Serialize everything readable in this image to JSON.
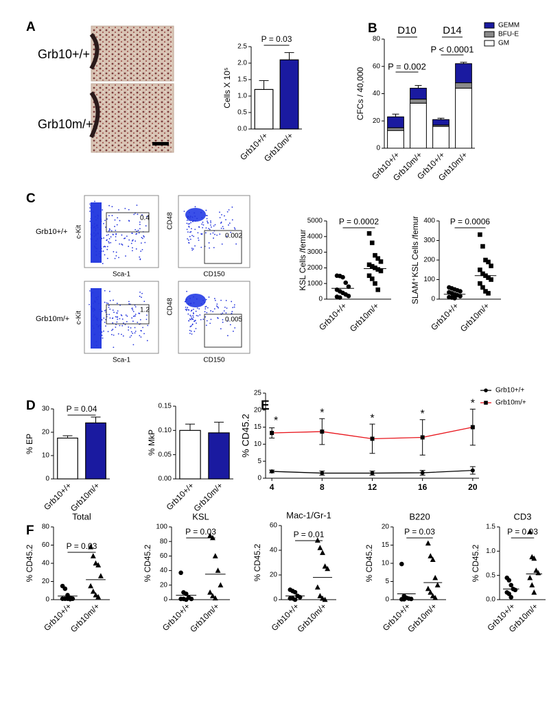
{
  "figure": {
    "panels": [
      "A",
      "B",
      "C",
      "D",
      "E",
      "F"
    ],
    "histology": [
      "Grb10+/+",
      "Grb10m/+"
    ],
    "flow": [
      {
        "genotype": "Grb10+/+",
        "kit_gate": "0.4",
        "slam_gate": "0.002"
      },
      {
        "genotype": "Grb10m/+",
        "kit_gate": "1.2",
        "slam_gate": "0.005"
      }
    ],
    "flow_axes": {
      "kit_y": "c-Kit",
      "kit_x": "Sca-1",
      "slam_y": "CD48",
      "slam_x": "CD150"
    }
  },
  "chart_data": [
    {
      "type": "bar",
      "ylabel": "Cells X 10⁵",
      "categories": [
        "Grb10+/+",
        "Grb10m/+"
      ],
      "values": [
        1.2,
        2.1
      ],
      "errors": [
        0.27,
        0.22
      ],
      "colors": [
        "#ffffff",
        "#1a1aa0"
      ],
      "ylim": [
        0,
        2.5
      ],
      "yticks": [
        {
          "value": 0,
          "label": "0.0"
        },
        0.5,
        {
          "value": 1,
          "label": "1.0"
        },
        1.5,
        {
          "value": 2,
          "label": "2.0"
        },
        2.5
      ],
      "annotation": "P = 0.03"
    },
    {
      "type": "bar",
      "ylabel": "CFCs / 40,000",
      "categories": [
        "Grb10+/+",
        "Grb10m/+",
        "Grb10+/+",
        "Grb10m/+"
      ],
      "series": [
        {
          "name": "GM",
          "color": "#ffffff",
          "values": [
            13,
            33,
            16,
            44
          ]
        },
        {
          "name": "BFU-E",
          "color": "#8a8a8a",
          "values": [
            2,
            3,
            1,
            4
          ]
        },
        {
          "name": "GEMM",
          "color": "#1a1aa0",
          "values": [
            8,
            8,
            4,
            14
          ],
          "errors": [
            2,
            2,
            1,
            1
          ]
        }
      ],
      "ylim": [
        0,
        80
      ],
      "yticks": [
        0,
        20,
        40,
        60,
        80
      ],
      "annotations": [
        "D10",
        "D14",
        "P = 0.002",
        "P < 0.0001"
      ]
    },
    {
      "type": "strip",
      "ylabel": "KSL Cells /femur",
      "categories": [
        "Grb10+/+",
        "Grb10m/+"
      ],
      "markers": [
        "circle",
        "square"
      ],
      "values": [
        [
          1500,
          1480,
          1400,
          1050,
          800,
          600,
          500,
          400,
          300,
          200,
          150,
          100
        ],
        [
          4200,
          3600,
          2800,
          2600,
          2400,
          2200,
          2100,
          2000,
          1900,
          1800,
          1500,
          1300,
          1000,
          600
        ]
      ],
      "means": [
        690,
        1950
      ],
      "ylim": [
        0,
        5000
      ],
      "yticks": [
        0,
        1000,
        2000,
        3000,
        4000,
        5000
      ],
      "annotation": "P = 0.0002"
    },
    {
      "type": "strip",
      "ylabel": "SLAM⁺KSL Cells /femur",
      "categories": [
        "Grb10+/+",
        "Grb10m/+"
      ],
      "markers": [
        "circle",
        "square"
      ],
      "values": [
        [
          60,
          55,
          50,
          45,
          40,
          35,
          30,
          25,
          20,
          15,
          10,
          8,
          5
        ],
        [
          330,
          270,
          200,
          190,
          170,
          150,
          130,
          120,
          110,
          100,
          80,
          60,
          40,
          30
        ]
      ],
      "means": [
        25,
        120
      ],
      "ylim": [
        0,
        400
      ],
      "yticks": [
        0,
        100,
        200,
        300,
        400
      ],
      "annotation": "P = 0.0006"
    },
    {
      "type": "bar",
      "ylabel": "% EP",
      "categories": [
        "Grb10+/+",
        "Grb10m/+"
      ],
      "values": [
        17.5,
        24
      ],
      "errors": [
        1,
        2.5
      ],
      "colors": [
        "#ffffff",
        "#1a1aa0"
      ],
      "ylim": [
        0,
        30
      ],
      "yticks": [
        0,
        10,
        20,
        30
      ],
      "annotation": "P = 0.04"
    },
    {
      "type": "bar",
      "ylabel": "% MkP",
      "categories": [
        "Grb10+/+",
        "Grb10m/+"
      ],
      "values": [
        0.1,
        0.095
      ],
      "errors": [
        0.013,
        0.022
      ],
      "colors": [
        "#ffffff",
        "#1a1aa0"
      ],
      "ylim": [
        0,
        0.15
      ],
      "yticks": [
        {
          "value": 0,
          "label": "0.00"
        },
        {
          "value": 0.05,
          "label": "0.05"
        },
        {
          "value": 0.1,
          "label": "0.10"
        },
        {
          "value": 0.15,
          "label": "0.15"
        }
      ]
    },
    {
      "type": "line",
      "ylabel": "% CD45.2",
      "x": [
        4,
        8,
        12,
        16,
        20
      ],
      "xlim": [
        3.5,
        20.5
      ],
      "xticks": [
        4,
        8,
        12,
        16,
        20
      ],
      "series": [
        {
          "name": "Grb10+/+",
          "color": "#000000",
          "marker": "circle",
          "values": [
            2,
            1.5,
            1.5,
            1.6,
            2.3
          ],
          "errors": [
            0.4,
            0.6,
            0.6,
            0.7,
            1.1
          ]
        },
        {
          "name": "Grb10m/+",
          "color": "#e8141b",
          "marker": "square",
          "values": [
            13.3,
            13.7,
            11.6,
            12,
            15
          ],
          "errors": [
            1.5,
            3.8,
            4.3,
            5.2,
            5.3
          ]
        }
      ],
      "ylim": [
        0,
        25
      ],
      "yticks": [
        0,
        5,
        10,
        15,
        20,
        25
      ],
      "annotations": [
        "*",
        "*",
        "*",
        "*",
        "*"
      ],
      "legend": "upper right"
    },
    {
      "type": "strip",
      "title": "Total",
      "ylabel": "% CD45.2",
      "categories": [
        "Grb10+/+",
        "Grb10m/+"
      ],
      "markers": [
        "circle",
        "triangle"
      ],
      "values": [
        [
          15,
          12,
          5,
          2,
          1,
          1,
          1,
          1,
          0.5
        ],
        [
          58,
          48,
          40,
          38,
          26,
          15,
          9,
          5,
          3
        ]
      ],
      "means": [
        4,
        22
      ],
      "ylim": [
        0,
        80
      ],
      "yticks": [
        0,
        20,
        40,
        60,
        80
      ],
      "annotation": "P = 0.03"
    },
    {
      "type": "strip",
      "title": "KSL",
      "ylabel": "% CD45.2",
      "categories": [
        "Grb10+/+",
        "Grb10m/+"
      ],
      "markers": [
        "circle",
        "triangle"
      ],
      "values": [
        [
          37,
          10,
          8,
          3,
          1,
          1,
          1,
          0
        ],
        [
          88,
          85,
          60,
          40,
          20,
          10,
          5,
          2
        ]
      ],
      "means": [
        6,
        35
      ],
      "ylim": [
        0,
        100
      ],
      "yticks": [
        0,
        20,
        40,
        60,
        80,
        100
      ],
      "annotation": "P = 0.03"
    },
    {
      "type": "strip",
      "title": "Mac-1/Gr-1",
      "ylabel": "% CD45.2",
      "categories": [
        "Grb10+/+",
        "Grb10m/+"
      ],
      "markers": [
        "circle",
        "triangle"
      ],
      "values": [
        [
          8,
          7,
          6,
          3,
          2,
          1,
          1,
          0
        ],
        [
          48,
          42,
          38,
          27,
          25,
          10,
          3,
          1,
          0
        ]
      ],
      "means": [
        3,
        18
      ],
      "ylim": [
        0,
        60
      ],
      "yticks": [
        0,
        20,
        40,
        60
      ],
      "annotation": "P = 0.01"
    },
    {
      "type": "strip",
      "title": "B220",
      "ylabel": "% CD45.2",
      "categories": [
        "Grb10+/+",
        "Grb10m/+"
      ],
      "markers": [
        "circle",
        "triangle"
      ],
      "values": [
        [
          9.8,
          1,
          0.5,
          0.3,
          0.2,
          0.1,
          0.1
        ],
        [
          15.5,
          12,
          11,
          6,
          4,
          3,
          2,
          1,
          0.5
        ]
      ],
      "means": [
        1.6,
        4.7
      ],
      "ylim": [
        0,
        20
      ],
      "yticks": [
        0,
        5,
        10,
        15,
        20
      ],
      "annotation": "P = 0.03"
    },
    {
      "type": "strip",
      "title": "CD3",
      "ylabel": "% CD45.2",
      "categories": [
        "Grb10+/+",
        "Grb10m/+"
      ],
      "markers": [
        "circle",
        "triangle"
      ],
      "values": [
        [
          0.45,
          0.4,
          0.3,
          0.22,
          0.2,
          0.15,
          0.12,
          0.05
        ],
        [
          1.4,
          0.88,
          0.85,
          0.6,
          0.55,
          0.45,
          0.3,
          0.15
        ]
      ],
      "means": [
        0.22,
        0.53
      ],
      "ylim": [
        0,
        1.5
      ],
      "yticks": [
        {
          "value": 0,
          "label": "0.0"
        },
        0.5,
        {
          "value": 1,
          "label": "1.0"
        },
        1.5
      ],
      "annotation": "P = 0.03"
    }
  ]
}
